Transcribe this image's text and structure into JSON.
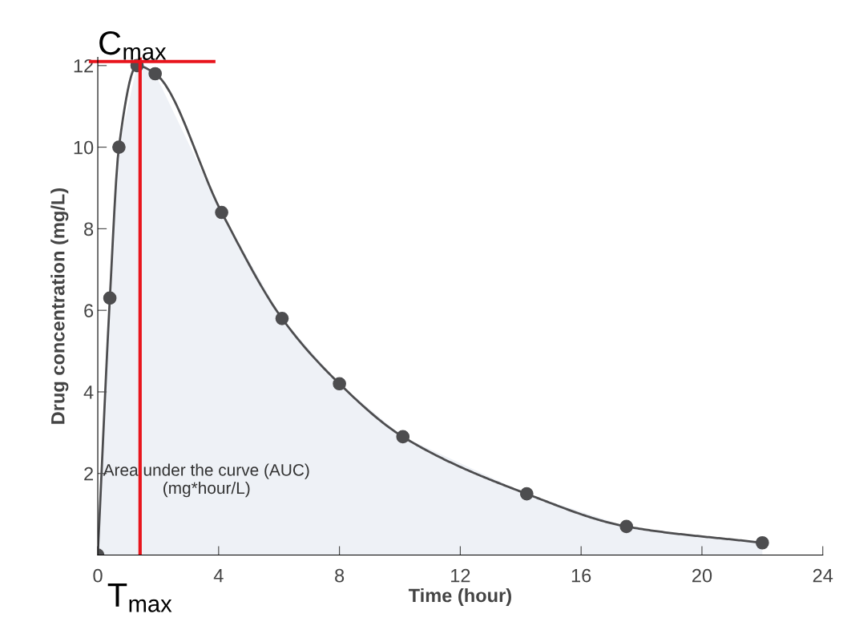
{
  "chart_data": {
    "type": "area",
    "xlabel": "Time (hour)",
    "ylabel": "Drug concentration (mg/L)",
    "x": [
      0,
      0.4,
      0.7,
      1.3,
      1.9,
      4.1,
      6.1,
      8.0,
      10.1,
      14.2,
      17.5,
      22.0
    ],
    "series": [
      {
        "color": "#4d4d4f",
        "values": [
          0,
          6.3,
          10.0,
          12.0,
          11.8,
          8.4,
          5.8,
          4.2,
          2.9,
          1.5,
          0.7,
          0.3
        ]
      }
    ],
    "marker": "circle",
    "xlim": [
      0,
      24
    ],
    "xticks": [
      0,
      4,
      8,
      12,
      16,
      20,
      24
    ],
    "ylim": [
      0,
      12.2
    ],
    "yticks": [
      2,
      4,
      6,
      8,
      10,
      12
    ],
    "grid": false,
    "ref_lines": [
      {
        "axis": "y",
        "value": 12.1,
        "label": "C$_{max}$",
        "color": "#e8141c"
      },
      {
        "axis": "x",
        "value": 1.4,
        "label": "T$_{max}$",
        "color": "#e8141c"
      }
    ],
    "annotations": [
      "Area under the curve (AUC)\n(mg*hour/L)"
    ]
  }
}
